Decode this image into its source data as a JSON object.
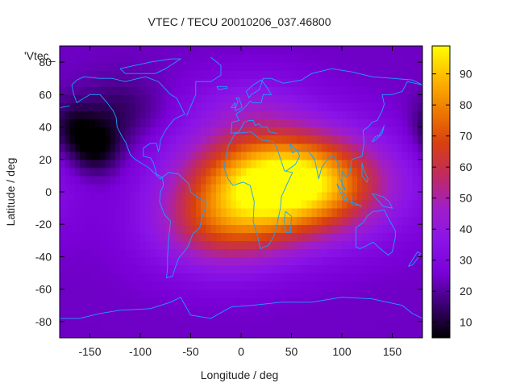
{
  "chart_data": {
    "type": "heatmap",
    "title": "VTEC / TECU 20010206_037.46800",
    "xlabel": "Longitude / deg",
    "ylabel": "Latitude / deg",
    "legend_label": "'Vtec_",
    "xlim": [
      -180,
      180
    ],
    "ylim": [
      -90,
      90
    ],
    "x_ticks": [
      -150,
      -100,
      -50,
      0,
      50,
      100,
      150
    ],
    "y_ticks": [
      -80,
      -60,
      -40,
      -20,
      0,
      20,
      40,
      60,
      80
    ],
    "colorbar": {
      "range": [
        5,
        99
      ],
      "ticks": [
        10,
        20,
        30,
        40,
        50,
        60,
        70,
        80,
        90
      ],
      "palette": [
        "#000000",
        "#3a0070",
        "#7a00d8",
        "#8a14e8",
        "#a01ec8",
        "#c02a60",
        "#d84010",
        "#ee7a00",
        "#ffb800",
        "#ffff00"
      ]
    },
    "field": {
      "background": 24,
      "components": [
        {
          "lon": 55,
          "lat": 5,
          "amp": 74,
          "slon": 60,
          "slat": 22
        },
        {
          "lon": -20,
          "lat": -20,
          "amp": 34,
          "slon": 48,
          "slat": 20
        },
        {
          "lon": 0,
          "lat": 20,
          "amp": 16,
          "slon": 55,
          "slat": 22
        },
        {
          "lon": 10,
          "lat": 55,
          "amp": 10,
          "slon": 40,
          "slat": 14
        },
        {
          "lon": -145,
          "lat": 28,
          "amp": -20,
          "slon": 18,
          "slat": 12
        },
        {
          "lon": -120,
          "lat": 50,
          "amp": -10,
          "slon": 30,
          "slat": 15
        },
        {
          "lon": -170,
          "lat": 40,
          "amp": -12,
          "slon": 15,
          "slat": 12
        }
      ]
    },
    "coastlines": [
      [
        [
          -168,
          66
        ],
        [
          -163,
          69
        ],
        [
          -156,
          71
        ],
        [
          -141,
          70
        ],
        [
          -128,
          70
        ],
        [
          -115,
          68
        ],
        [
          -95,
          71
        ],
        [
          -82,
          68
        ],
        [
          -70,
          60
        ],
        [
          -64,
          58
        ],
        [
          -60,
          53
        ],
        [
          -56,
          48
        ],
        [
          -66,
          45
        ],
        [
          -70,
          42
        ],
        [
          -75,
          38
        ],
        [
          -80,
          32
        ],
        [
          -81,
          27
        ],
        [
          -82,
          25
        ],
        [
          -84,
          30
        ],
        [
          -90,
          30
        ],
        [
          -97,
          27
        ],
        [
          -97,
          22
        ],
        [
          -90,
          21
        ],
        [
          -87,
          18
        ],
        [
          -84,
          11
        ],
        [
          -78,
          9
        ],
        [
          -80,
          8
        ],
        [
          -85,
          11
        ],
        [
          -92,
          15
        ],
        [
          -105,
          20
        ],
        [
          -110,
          23
        ],
        [
          -114,
          30
        ],
        [
          -118,
          34
        ],
        [
          -123,
          40
        ],
        [
          -124,
          46
        ],
        [
          -127,
          50
        ],
        [
          -133,
          55
        ],
        [
          -140,
          60
        ],
        [
          -150,
          60
        ],
        [
          -158,
          57
        ],
        [
          -163,
          55
        ],
        [
          -166,
          60
        ],
        [
          -168,
          66
        ]
      ],
      [
        [
          -78,
          9
        ],
        [
          -72,
          12
        ],
        [
          -62,
          11
        ],
        [
          -52,
          5
        ],
        [
          -50,
          0
        ],
        [
          -44,
          -3
        ],
        [
          -35,
          -6
        ],
        [
          -35,
          -9
        ],
        [
          -39,
          -16
        ],
        [
          -41,
          -22
        ],
        [
          -48,
          -26
        ],
        [
          -53,
          -34
        ],
        [
          -58,
          -38
        ],
        [
          -62,
          -41
        ],
        [
          -65,
          -46
        ],
        [
          -68,
          -52
        ],
        [
          -74,
          -53
        ],
        [
          -73,
          -47
        ],
        [
          -73,
          -40
        ],
        [
          -72,
          -30
        ],
        [
          -70,
          -18
        ],
        [
          -76,
          -14
        ],
        [
          -81,
          -6
        ],
        [
          -80,
          0
        ],
        [
          -77,
          4
        ],
        [
          -78,
          9
        ]
      ],
      [
        [
          -17,
          15
        ],
        [
          -13,
          28
        ],
        [
          -6,
          36
        ],
        [
          10,
          37
        ],
        [
          20,
          32
        ],
        [
          32,
          31
        ],
        [
          35,
          28
        ],
        [
          43,
          13
        ],
        [
          51,
          12
        ],
        [
          45,
          4
        ],
        [
          40,
          -3
        ],
        [
          39,
          -10
        ],
        [
          35,
          -22
        ],
        [
          32,
          -28
        ],
        [
          27,
          -33
        ],
        [
          19,
          -35
        ],
        [
          17,
          -29
        ],
        [
          12,
          -18
        ],
        [
          13,
          -6
        ],
        [
          9,
          4
        ],
        [
          2,
          6
        ],
        [
          -8,
          4
        ],
        [
          -13,
          8
        ],
        [
          -17,
          15
        ]
      ],
      [
        [
          -10,
          36
        ],
        [
          -9,
          43
        ],
        [
          -2,
          44
        ],
        [
          -5,
          48
        ],
        [
          2,
          51
        ],
        [
          5,
          53
        ],
        [
          9,
          56
        ],
        [
          12,
          55
        ],
        [
          20,
          55
        ],
        [
          22,
          60
        ],
        [
          30,
          60
        ],
        [
          25,
          65
        ],
        [
          20,
          69
        ],
        [
          12,
          66
        ],
        [
          5,
          62
        ],
        [
          8,
          58
        ],
        [
          10,
          60
        ],
        [
          18,
          63
        ],
        [
          22,
          70
        ],
        [
          30,
          70
        ],
        [
          42,
          67
        ],
        [
          60,
          69
        ],
        [
          70,
          73
        ],
        [
          90,
          76
        ],
        [
          110,
          74
        ],
        [
          130,
          71
        ],
        [
          150,
          70
        ],
        [
          170,
          69
        ],
        [
          180,
          66
        ]
      ],
      [
        [
          36,
          36
        ],
        [
          28,
          37
        ],
        [
          26,
          40
        ],
        [
          20,
          40
        ],
        [
          18,
          42
        ],
        [
          14,
          41
        ],
        [
          12,
          44
        ],
        [
          8,
          44
        ],
        [
          3,
          43
        ],
        [
          -2,
          37
        ],
        [
          -10,
          36
        ]
      ],
      [
        [
          -180,
          -78
        ],
        [
          -160,
          -78
        ],
        [
          -140,
          -75
        ],
        [
          -120,
          -73
        ],
        [
          -90,
          -72
        ],
        [
          -70,
          -68
        ],
        [
          -60,
          -65
        ],
        [
          -50,
          -76
        ],
        [
          -30,
          -78
        ],
        [
          -10,
          -71
        ],
        [
          10,
          -70
        ],
        [
          40,
          -68
        ],
        [
          70,
          -68
        ],
        [
          100,
          -65
        ],
        [
          130,
          -66
        ],
        [
          160,
          -70
        ],
        [
          170,
          -75
        ],
        [
          180,
          -78
        ]
      ],
      [
        [
          114,
          -22
        ],
        [
          114,
          -34
        ],
        [
          118,
          -35
        ],
        [
          125,
          -33
        ],
        [
          131,
          -31
        ],
        [
          138,
          -35
        ],
        [
          146,
          -39
        ],
        [
          150,
          -37
        ],
        [
          153,
          -28
        ],
        [
          153,
          -24
        ],
        [
          145,
          -15
        ],
        [
          142,
          -11
        ],
        [
          136,
          -12
        ],
        [
          131,
          -12
        ],
        [
          125,
          -15
        ],
        [
          121,
          -19
        ],
        [
          114,
          -22
        ]
      ],
      [
        [
          120,
          22
        ],
        [
          122,
          30
        ],
        [
          121,
          38
        ],
        [
          126,
          40
        ],
        [
          130,
          43
        ],
        [
          135,
          44
        ],
        [
          140,
          50
        ],
        [
          142,
          54
        ],
        [
          140,
          60
        ],
        [
          150,
          60
        ],
        [
          160,
          62
        ],
        [
          165,
          68
        ],
        [
          180,
          66
        ]
      ],
      [
        [
          120,
          22
        ],
        [
          110,
          20
        ],
        [
          108,
          12
        ],
        [
          104,
          9
        ],
        [
          100,
          13
        ],
        [
          100,
          3
        ],
        [
          104,
          1
        ],
        [
          98,
          8
        ],
        [
          97,
          17
        ],
        [
          92,
          22
        ],
        [
          88,
          22
        ],
        [
          80,
          15
        ],
        [
          77,
          8
        ],
        [
          73,
          20
        ],
        [
          67,
          25
        ],
        [
          57,
          25
        ],
        [
          52,
          27
        ],
        [
          48,
          30
        ],
        [
          51,
          24
        ],
        [
          56,
          26
        ],
        [
          58,
          22
        ],
        [
          54,
          17
        ],
        [
          45,
          13
        ],
        [
          43,
          13
        ]
      ],
      [
        [
          95,
          5
        ],
        [
          103,
          -2
        ],
        [
          106,
          -6
        ],
        [
          102,
          -5
        ],
        [
          97,
          2
        ],
        [
          95,
          5
        ]
      ],
      [
        [
          110,
          -2
        ],
        [
          110,
          -8
        ],
        [
          115,
          -8
        ],
        [
          120,
          -9
        ],
        [
          113,
          -7
        ],
        [
          106,
          -6
        ]
      ],
      [
        [
          130,
          -1
        ],
        [
          141,
          -3
        ],
        [
          147,
          -6
        ],
        [
          150,
          -10
        ],
        [
          141,
          -9
        ],
        [
          134,
          -4
        ],
        [
          130,
          -1
        ]
      ],
      [
        [
          130,
          31
        ],
        [
          133,
          34
        ],
        [
          137,
          35
        ],
        [
          140,
          38
        ],
        [
          142,
          41
        ],
        [
          140,
          36
        ],
        [
          135,
          33
        ],
        [
          131,
          31
        ],
        [
          130,
          31
        ]
      ],
      [
        [
          -54,
          47
        ],
        [
          -45,
          60
        ],
        [
          -45,
          68
        ],
        [
          -30,
          68
        ],
        [
          -20,
          72
        ],
        [
          -20,
          78
        ],
        [
          -30,
          83
        ]
      ],
      [
        [
          -120,
          76
        ],
        [
          -105,
          78
        ],
        [
          -90,
          80
        ],
        [
          -70,
          82
        ],
        [
          -60,
          82
        ],
        [
          -75,
          76
        ],
        [
          -85,
          73
        ],
        [
          -100,
          73
        ],
        [
          -115,
          73
        ],
        [
          -120,
          76
        ]
      ],
      [
        [
          166,
          -46
        ],
        [
          172,
          -40
        ],
        [
          175,
          -37
        ],
        [
          178,
          -38
        ],
        [
          174,
          -42
        ],
        [
          170,
          -45
        ],
        [
          166,
          -46
        ]
      ],
      [
        [
          -170,
          53
        ],
        [
          -180,
          52
        ]
      ],
      [
        [
          -6,
          50
        ],
        [
          -5,
          53
        ],
        [
          -3,
          56
        ],
        [
          -5,
          58
        ],
        [
          -2,
          58
        ],
        [
          1,
          52
        ],
        [
          -6,
          50
        ]
      ],
      [
        [
          -10,
          52
        ],
        [
          -6,
          55
        ],
        [
          -6,
          52
        ],
        [
          -10,
          52
        ]
      ],
      [
        [
          -24,
          65
        ],
        [
          -14,
          65
        ],
        [
          -14,
          64
        ],
        [
          -22,
          63
        ],
        [
          -24,
          65
        ]
      ],
      [
        [
          44,
          -12
        ],
        [
          50,
          -15
        ],
        [
          49,
          -25
        ],
        [
          44,
          -25
        ],
        [
          43,
          -17
        ],
        [
          44,
          -12
        ]
      ],
      [
        [
          120,
          18
        ],
        [
          122,
          13
        ],
        [
          126,
          8
        ],
        [
          125,
          6
        ],
        [
          120,
          10
        ],
        [
          120,
          18
        ]
      ]
    ]
  }
}
